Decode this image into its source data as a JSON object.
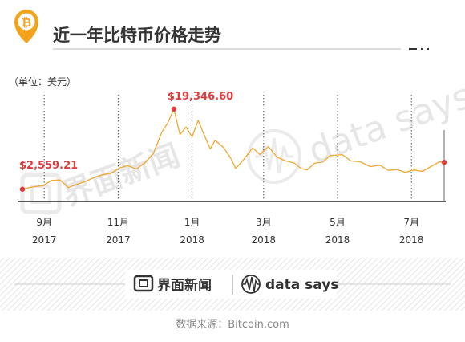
{
  "header": {
    "title": "近一年比特币价格走势",
    "icon": "bitcoin-icon",
    "accent_color": "#f4a21a"
  },
  "chart_data": {
    "type": "line",
    "unit_label": "（单位：美元）",
    "series": [
      {
        "color": "#f0a830",
        "points": [
          [
            "2017-08-14",
            2559.21
          ],
          [
            "2017-08-18",
            2800
          ],
          [
            "2017-08-24",
            3100
          ],
          [
            "2017-08-31",
            3300
          ],
          [
            "2017-09-07",
            4400
          ],
          [
            "2017-09-14",
            4500
          ],
          [
            "2017-09-21",
            2900
          ],
          [
            "2017-09-28",
            3600
          ],
          [
            "2017-10-05",
            4200
          ],
          [
            "2017-10-12",
            5000
          ],
          [
            "2017-10-19",
            5600
          ],
          [
            "2017-10-26",
            5900
          ],
          [
            "2017-11-02",
            7000
          ],
          [
            "2017-11-09",
            7500
          ],
          [
            "2017-11-16",
            6800
          ],
          [
            "2017-11-23",
            8100
          ],
          [
            "2017-11-30",
            10000
          ],
          [
            "2017-12-07",
            14500
          ],
          [
            "2017-12-12",
            16500
          ],
          [
            "2017-12-17",
            19346.6
          ],
          [
            "2017-12-22",
            14000
          ],
          [
            "2017-12-27",
            15600
          ],
          [
            "2018-01-01",
            13500
          ],
          [
            "2018-01-06",
            17000
          ],
          [
            "2018-01-10",
            14500
          ],
          [
            "2018-01-16",
            11000
          ],
          [
            "2018-01-20",
            12800
          ],
          [
            "2018-01-27",
            11300
          ],
          [
            "2018-02-02",
            9000
          ],
          [
            "2018-02-06",
            6900
          ],
          [
            "2018-02-12",
            8600
          ],
          [
            "2018-02-20",
            11200
          ],
          [
            "2018-02-26",
            9800
          ],
          [
            "2018-03-05",
            11500
          ],
          [
            "2018-03-12",
            9300
          ],
          [
            "2018-03-19",
            8500
          ],
          [
            "2018-03-26",
            8100
          ],
          [
            "2018-04-01",
            6900
          ],
          [
            "2018-04-06",
            6600
          ],
          [
            "2018-04-12",
            8000
          ],
          [
            "2018-04-19",
            8300
          ],
          [
            "2018-04-25",
            9600
          ],
          [
            "2018-05-05",
            9800
          ],
          [
            "2018-05-12",
            8500
          ],
          [
            "2018-05-20",
            8300
          ],
          [
            "2018-05-28",
            7300
          ],
          [
            "2018-06-05",
            7600
          ],
          [
            "2018-06-12",
            6500
          ],
          [
            "2018-06-19",
            6700
          ],
          [
            "2018-06-26",
            6100
          ],
          [
            "2018-07-03",
            6600
          ],
          [
            "2018-07-10",
            6300
          ],
          [
            "2018-07-17",
            7300
          ],
          [
            "2018-07-24",
            8300
          ],
          [
            "2018-07-28",
            8200
          ]
        ]
      }
    ],
    "x_ticks": [
      {
        "date": "2017-09-01",
        "month": "9月",
        "year": "2017"
      },
      {
        "date": "2017-11-01",
        "month": "11月",
        "year": "2017"
      },
      {
        "date": "2018-01-01",
        "month": "1月",
        "year": "2018"
      },
      {
        "date": "2018-03-01",
        "month": "3月",
        "year": "2018"
      },
      {
        "date": "2018-05-01",
        "month": "5月",
        "year": "2018"
      },
      {
        "date": "2018-07-01",
        "month": "7月",
        "year": "2018"
      }
    ],
    "x_range": [
      "2017-08-14",
      "2018-07-28"
    ],
    "ylim": [
      0,
      22000
    ],
    "grid": "vertical dashed",
    "annotations": [
      {
        "date": "2017-08-14",
        "value": 2559.21,
        "label": "$2,559.21",
        "color": "#e03c3c"
      },
      {
        "date": "2017-12-17",
        "value": 19346.6,
        "label": "$19,346.60",
        "color": "#e03c3c"
      },
      {
        "date": "2018-07-28",
        "value": 8200,
        "label": "",
        "color": "#e03c3c"
      }
    ]
  },
  "watermark": {
    "brand_left": "界面新闻",
    "brand_right": "data says"
  },
  "footer": {
    "brand_left": "界面新闻",
    "brand_right": "data says",
    "source": "数据来源：Bitcoin.com"
  }
}
